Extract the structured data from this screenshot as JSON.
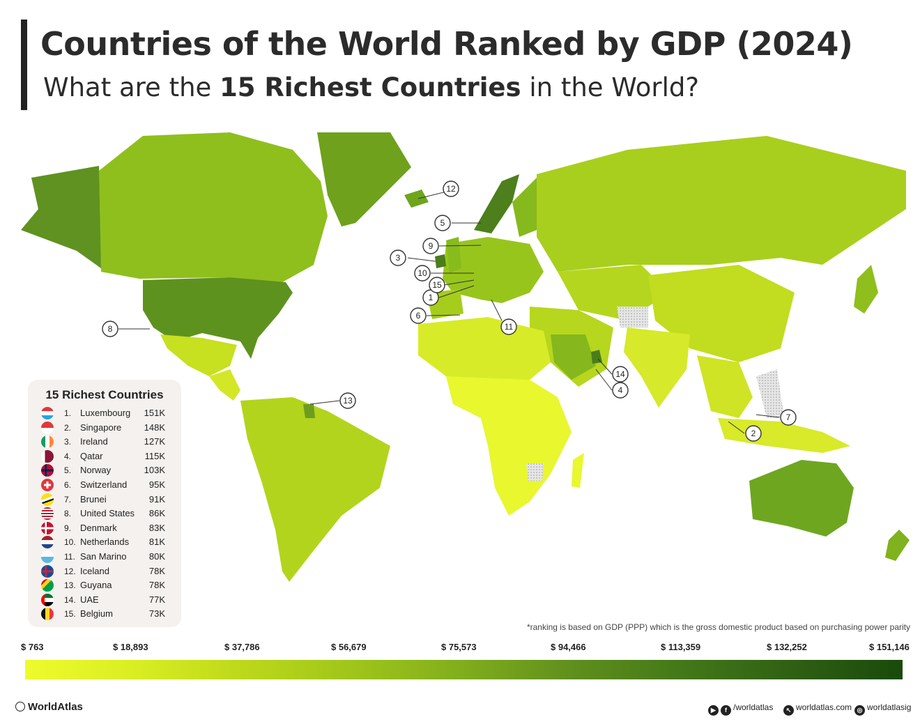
{
  "header": {
    "title": "Countries of the World Ranked by GDP (2024)",
    "subtitle_pre": "What are the ",
    "subtitle_bold": "15 Richest Countries",
    "subtitle_post": " in the World?"
  },
  "legend": {
    "title": "15 Richest Countries",
    "rows": [
      {
        "rank": "1.",
        "name": "Luxembourg",
        "value": "151K",
        "flag": "lux"
      },
      {
        "rank": "2.",
        "name": "Singapore",
        "value": "148K",
        "flag": "sgp"
      },
      {
        "rank": "3.",
        "name": "Ireland",
        "value": "127K",
        "flag": "irl"
      },
      {
        "rank": "4.",
        "name": "Qatar",
        "value": "115K",
        "flag": "qat"
      },
      {
        "rank": "5.",
        "name": "Norway",
        "value": "103K",
        "flag": "nor"
      },
      {
        "rank": "6.",
        "name": "Switzerland",
        "value": "95K",
        "flag": "che"
      },
      {
        "rank": "7.",
        "name": "Brunei",
        "value": "91K",
        "flag": "brn"
      },
      {
        "rank": "8.",
        "name": "United States",
        "value": "86K",
        "flag": "usa"
      },
      {
        "rank": "9.",
        "name": "Denmark",
        "value": "83K",
        "flag": "dnk"
      },
      {
        "rank": "10.",
        "name": "Netherlands",
        "value": "81K",
        "flag": "nld"
      },
      {
        "rank": "11.",
        "name": "San Marino",
        "value": "80K",
        "flag": "smr"
      },
      {
        "rank": "12.",
        "name": "Iceland",
        "value": "78K",
        "flag": "isl"
      },
      {
        "rank": "13.",
        "name": "Guyana",
        "value": "78K",
        "flag": "guy"
      },
      {
        "rank": "14.",
        "name": "UAE",
        "value": "77K",
        "flag": "are"
      },
      {
        "rank": "15.",
        "name": "Belgium",
        "value": "73K",
        "flag": "bel"
      }
    ]
  },
  "map_callouts": [
    "1",
    "2",
    "3",
    "4",
    "5",
    "6",
    "7",
    "8",
    "9",
    "10",
    "11",
    "12",
    "13",
    "14",
    "15"
  ],
  "footnote": "*ranking is based on GDP (PPP) which is the gross domestic product based on purchasing power parity",
  "scale": {
    "labels": [
      "$ 763",
      "$ 18,893",
      "$ 37,786",
      "$ 56,679",
      "$ 75,573",
      "$ 94,466",
      "$ 113,359",
      "$ 132,252",
      "$ 151,146"
    ],
    "colors": [
      "#eefb2c",
      "#d9ee22",
      "#bcd81a",
      "#9fc51a",
      "#80ad1c",
      "#5f8f1d",
      "#437818",
      "#2f6013",
      "#1a4a0b"
    ]
  },
  "colors": {
    "top_tier": "#4a7e1c",
    "high": "#6ea41e",
    "mid": "#a9cf1c",
    "low": "#e8f72e",
    "no_data": "#d0d0d0"
  },
  "footer": {
    "brand": "WorldAtlas",
    "social_handle": "/worldatlas",
    "website": "worldatlas.com",
    "instagram": "worldatlasig"
  }
}
